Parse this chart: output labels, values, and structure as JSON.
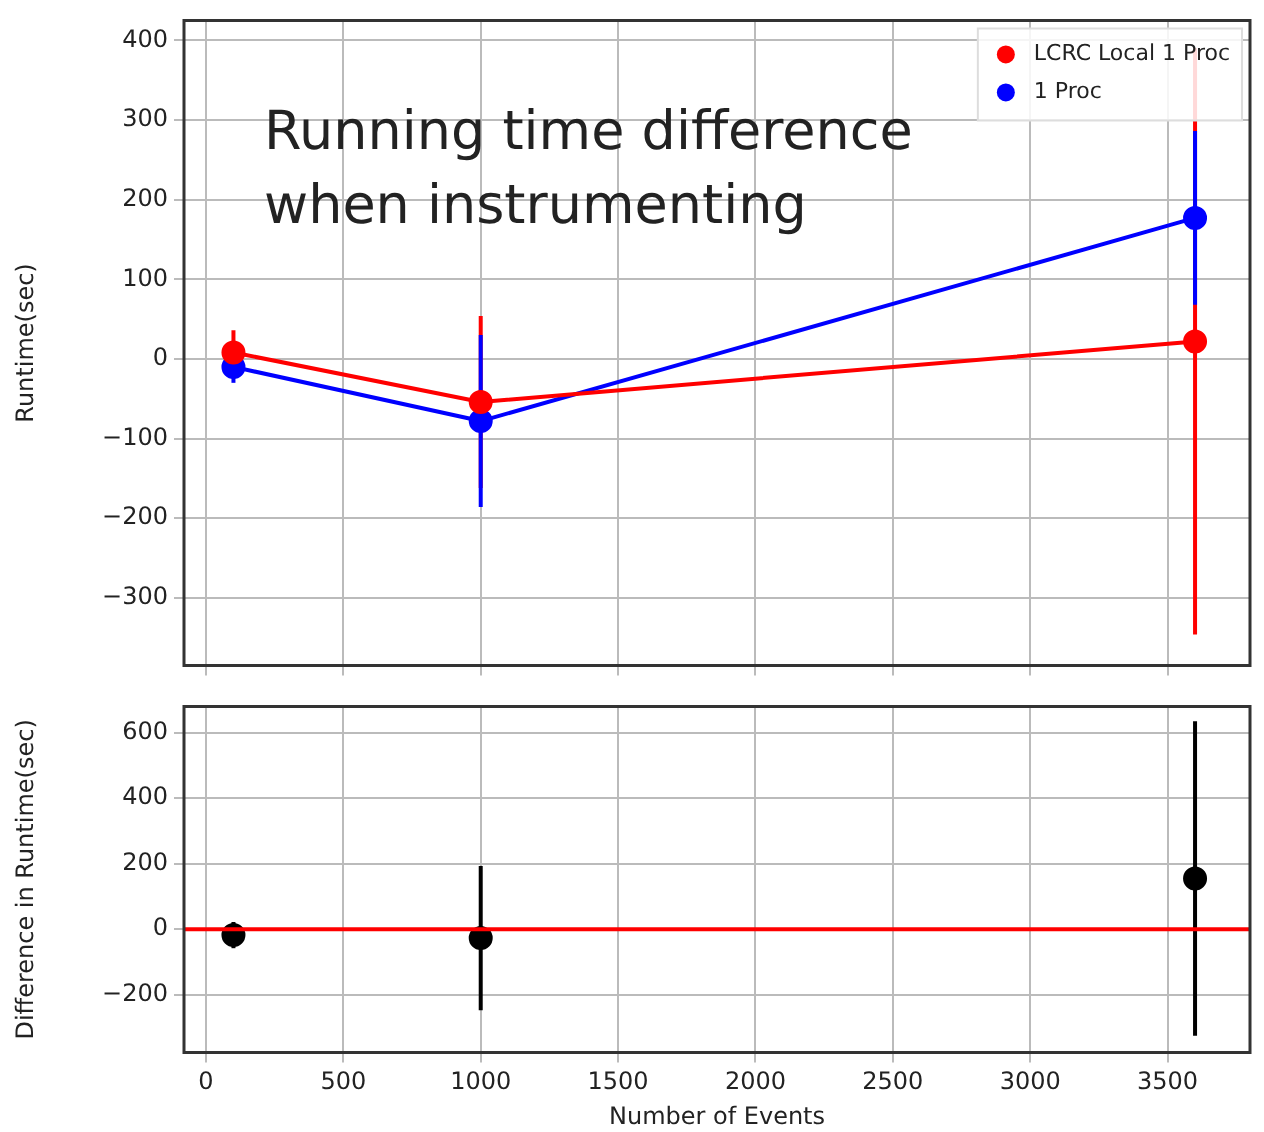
{
  "chart_data": [
    {
      "type": "line",
      "ylabel": "Runtime(sec)",
      "x": [
        100,
        1000,
        3600
      ],
      "xlim": [
        -80,
        3800
      ],
      "xticks": [
        0,
        500,
        1000,
        1500,
        2000,
        2500,
        3000,
        3500
      ],
      "ylim": [
        -385,
        425
      ],
      "yticks": [
        -300,
        -200,
        -100,
        0,
        100,
        200,
        300,
        400
      ],
      "tick_labels": "y",
      "grid": true,
      "legend": "top right",
      "marker": "circle",
      "series": [
        {
          "name": "LCRC Local 1 Proc",
          "color": "#ff0000",
          "values": [
            8,
            -54,
            22
          ],
          "errors": [
            28,
            108,
            368
          ]
        },
        {
          "name": "1 Proc",
          "color": "#0000ff",
          "values": [
            -10,
            -78,
            177
          ],
          "errors": [
            20,
            108,
            109
          ]
        }
      ],
      "annotations": [
        "Running time difference when instrumenting"
      ]
    },
    {
      "type": "scatter",
      "xlabel": "Number of Events",
      "ylabel": "Difference in Runtime(sec)",
      "x": [
        100,
        1000,
        3600
      ],
      "xlim": [
        -80,
        3800
      ],
      "xticks": [
        0,
        500,
        1000,
        1500,
        2000,
        2500,
        3000,
        3500
      ],
      "ylim": [
        -376,
        680
      ],
      "yticks": [
        -200,
        0,
        200,
        400,
        600
      ],
      "grid": true,
      "marker": "circle",
      "series": [
        {
          "color": "#000000",
          "values": [
            -18,
            -27,
            155
          ],
          "errors": [
            40,
            220,
            480
          ]
        }
      ],
      "ref_lines": [
        {
          "axis": "y",
          "value": 0,
          "color": "#ff0000"
        }
      ]
    }
  ]
}
